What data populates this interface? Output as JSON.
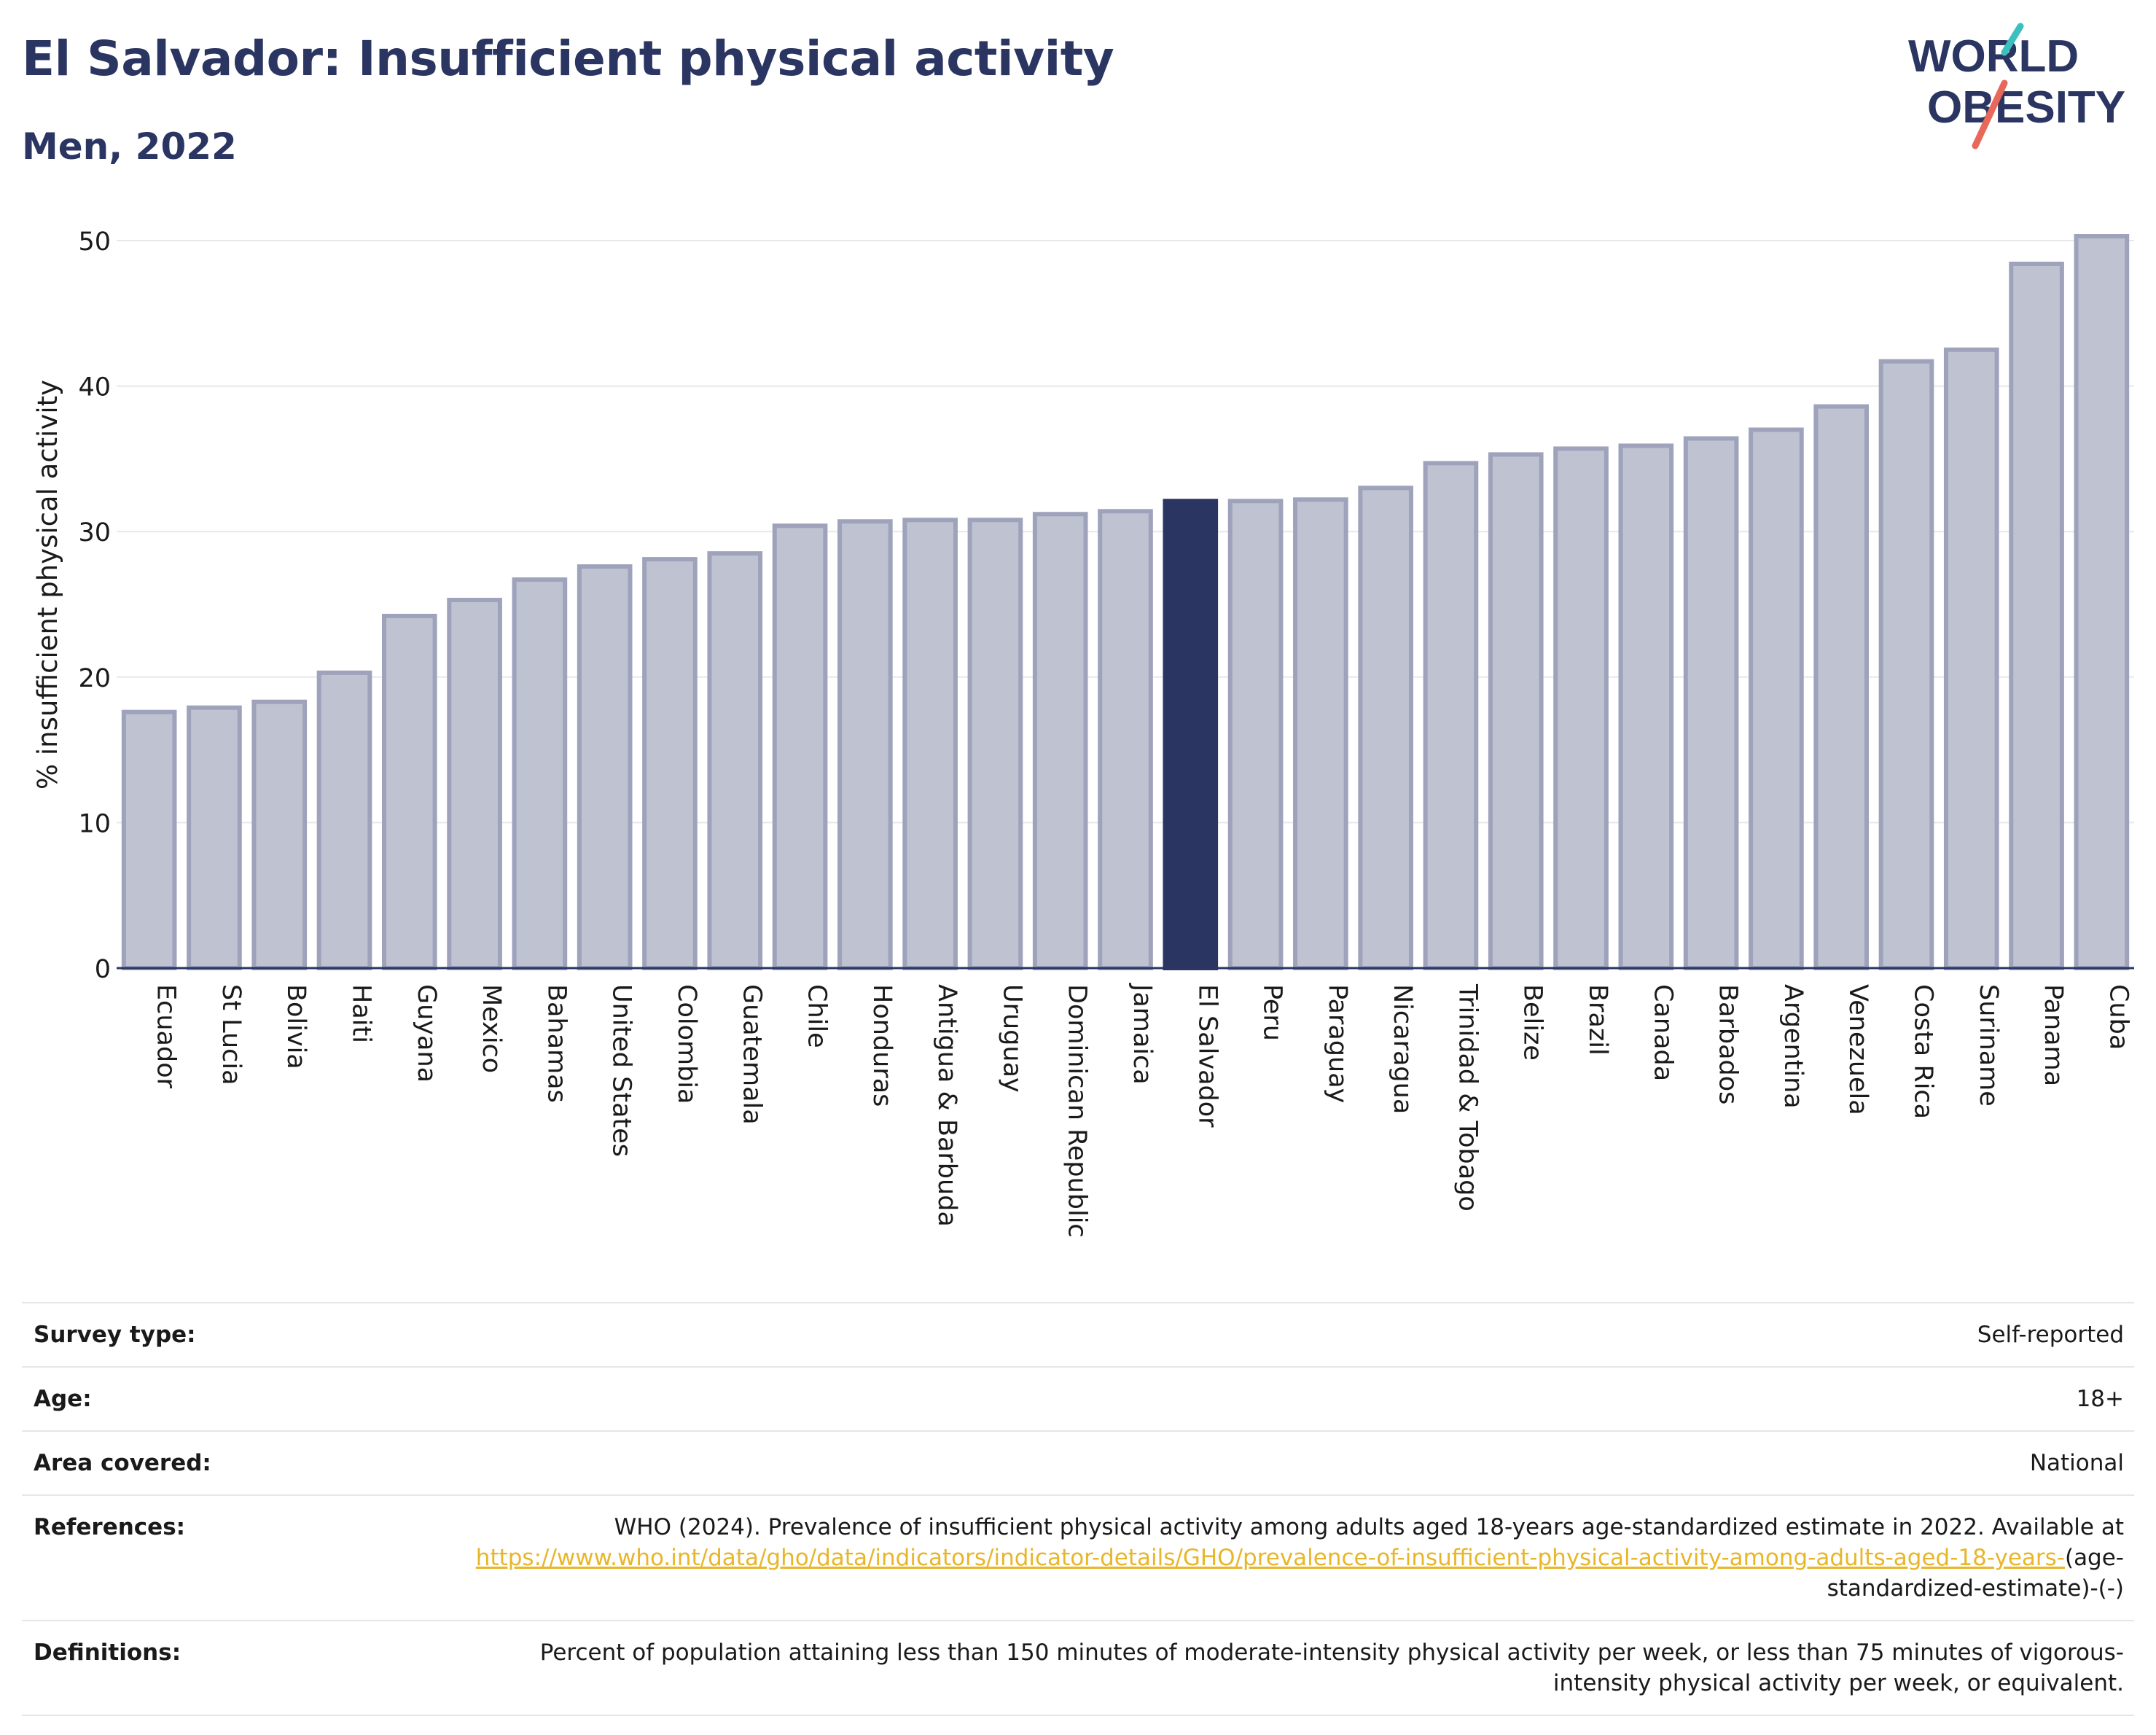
{
  "header": {
    "title": "El Salvador: Insufficient physical activity",
    "subtitle": "Men, 2022"
  },
  "logo": {
    "line1": "WORLD",
    "line2": "OBESITY",
    "icon": "world-obesity-logo"
  },
  "colors": {
    "highlight": "#2a3562",
    "bar_fill": "#bfc2d0",
    "bar_stroke": "#9ea3bb",
    "link": "#e8b62a"
  },
  "chart_data": {
    "type": "bar",
    "ylabel": "% insufficient physical activity",
    "xlabel": "",
    "ylim": [
      0,
      52
    ],
    "yticks": [
      0,
      10,
      20,
      30,
      40,
      50
    ],
    "grid": true,
    "highlight": "El Salvador",
    "categories": [
      "Ecuador",
      "St Lucia",
      "Bolivia",
      "Haiti",
      "Guyana",
      "Mexico",
      "Bahamas",
      "United States",
      "Colombia",
      "Guatemala",
      "Chile",
      "Honduras",
      "Antigua & Barbuda",
      "Uruguay",
      "Dominican Republic",
      "Jamaica",
      "El Salvador",
      "Peru",
      "Paraguay",
      "Nicaragua",
      "Trinidad & Tobago",
      "Belize",
      "Brazil",
      "Canada",
      "Barbados",
      "Argentina",
      "Venezuela",
      "Costa Rica",
      "Suriname",
      "Panama",
      "Cuba"
    ],
    "values": [
      17.6,
      17.9,
      18.3,
      20.3,
      24.2,
      25.3,
      26.7,
      27.6,
      28.1,
      28.5,
      30.4,
      30.7,
      30.8,
      30.8,
      31.2,
      31.4,
      32.1,
      32.1,
      32.2,
      33.0,
      34.7,
      35.3,
      35.7,
      35.9,
      36.4,
      37.0,
      38.6,
      41.7,
      42.5,
      48.4,
      50.3
    ]
  },
  "details": {
    "survey_type_label": "Survey type:",
    "survey_type_value": "Self-reported",
    "age_label": "Age:",
    "age_value": "18+",
    "area_label": "Area covered:",
    "area_value": "National",
    "references_label": "References:",
    "references_text": "WHO (2024). Prevalence of insufficient physical activity among adults aged 18-years age-standardized estimate in 2022. Available at",
    "references_link": "https://www.who.int/data/gho/data/indicators/indicator-details/GHO/prevalence-of-insufficient-physical-activity-among-adults-aged-18-years-",
    "references_suffix": "(age-standardized-estimate)-(-)",
    "definitions_label": "Definitions:",
    "definitions_text": "Percent of population attaining less than 150 minutes of moderate-intensity physical activity per week, or less than 75 minutes of vigorous-intensity physical activity per week, or equivalent."
  }
}
